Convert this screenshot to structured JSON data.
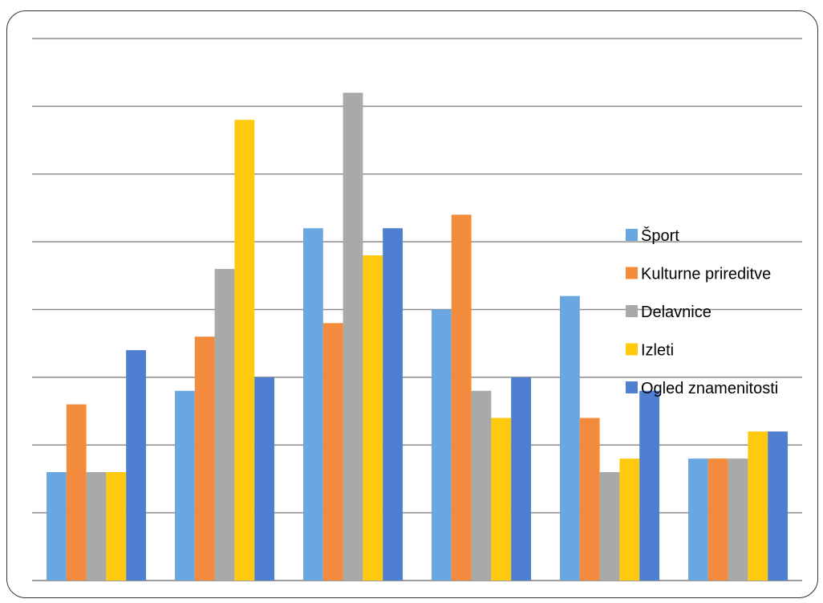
{
  "chart_data": {
    "type": "bar",
    "title": "",
    "xlabel": "",
    "ylabel": "",
    "categories": [
      "",
      "",
      "",
      "",
      "",
      ""
    ],
    "ylim": [
      0,
      8
    ],
    "grid": true,
    "legend_position": "right",
    "series": [
      {
        "name": "Šport",
        "color": "#6aa6e0",
        "values": [
          1.6,
          2.8,
          5.2,
          4.0,
          4.2,
          1.8
        ]
      },
      {
        "name": "Kulturne prireditve",
        "color": "#f28b3b",
        "values": [
          2.6,
          3.6,
          3.8,
          5.4,
          2.4,
          1.8
        ]
      },
      {
        "name": "Delavnice",
        "color": "#a9a9a9",
        "values": [
          1.6,
          4.6,
          7.2,
          2.8,
          1.6,
          1.8
        ]
      },
      {
        "name": "Izleti",
        "color": "#ffc90e",
        "values": [
          1.6,
          6.8,
          4.8,
          2.4,
          1.8,
          2.2
        ]
      },
      {
        "name": "Ogled znamenitosti",
        "color": "#4e7fd0",
        "values": [
          3.4,
          3.0,
          5.2,
          3.0,
          2.8,
          2.2
        ]
      }
    ]
  }
}
